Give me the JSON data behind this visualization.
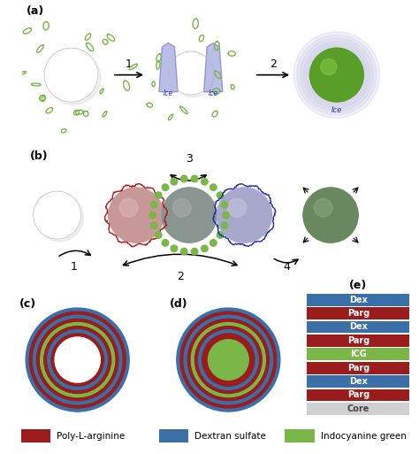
{
  "fig_width": 4.74,
  "fig_height": 5.13,
  "dpi": 100,
  "bg_color": "#ffffff",
  "colors": {
    "parg": "#9B1C1C",
    "dex": "#3A6FA8",
    "icg": "#7AB648",
    "core_gray": "#D0D0D0",
    "green_sphere": "#5a9e2a",
    "red_fill": "#c89898",
    "blue_fill": "#a8a8cc",
    "gray_center": "#8a9898",
    "green_fill": "#88aa60",
    "ice_blue_light": "#a0a0e0",
    "ice_blue_dark": "#7070b8"
  },
  "legend_items": [
    {
      "label": "Poly-L-arginine",
      "color": "#9B1C1C"
    },
    {
      "label": "Dextran sulfate",
      "color": "#3A6FA8"
    },
    {
      "label": "Indocyanine green",
      "color": "#7AB648"
    }
  ],
  "stack_labels": [
    "Dex",
    "Parg",
    "Dex",
    "Parg",
    "ICG",
    "Parg",
    "Dex",
    "Parg",
    "Core"
  ],
  "stack_colors": [
    "#3A6FA8",
    "#9B1C1C",
    "#3A6FA8",
    "#9B1C1C",
    "#7AB648",
    "#9B1C1C",
    "#3A6FA8",
    "#9B1C1C",
    "#D0D0D0"
  ]
}
